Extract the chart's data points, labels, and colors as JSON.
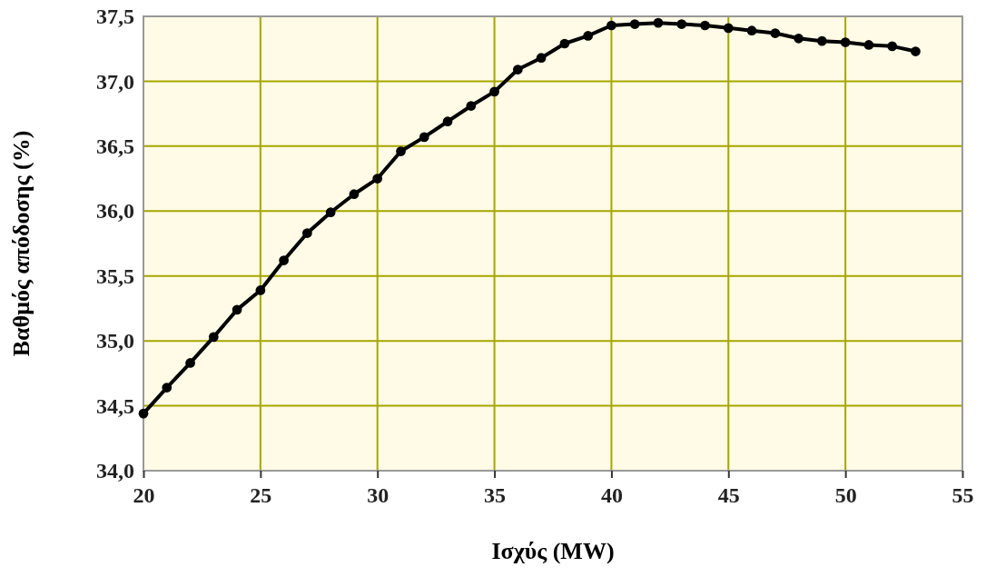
{
  "chart_data": {
    "type": "line",
    "xlabel": "Ισχύς (MW)",
    "ylabel": "Βαθμός απόδοσης (%)",
    "x": [
      20,
      21,
      22,
      23,
      24,
      25,
      26,
      27,
      28,
      29,
      30,
      31,
      32,
      33,
      34,
      35,
      36,
      37,
      38,
      39,
      40,
      41,
      42,
      43,
      44,
      45,
      46,
      47,
      48,
      49,
      50,
      51,
      52,
      53
    ],
    "series": [
      {
        "color": "#000000",
        "values": [
          34.44,
          34.64,
          34.83,
          35.03,
          35.24,
          35.39,
          35.62,
          35.83,
          35.99,
          36.13,
          36.25,
          36.46,
          36.57,
          36.69,
          36.81,
          36.92,
          37.09,
          37.18,
          37.29,
          37.35,
          37.43,
          37.44,
          37.45,
          37.44,
          37.43,
          37.41,
          37.39,
          37.37,
          37.33,
          37.31,
          37.3,
          37.28,
          37.27,
          37.23
        ]
      }
    ],
    "xlim": [
      20,
      55
    ],
    "xticks": [
      20,
      25,
      30,
      35,
      40,
      45,
      50,
      55
    ],
    "ylim": [
      34,
      37.5
    ],
    "yticks": [
      {
        "value": 34,
        "label": "34,0"
      },
      {
        "value": 34.5,
        "label": "34,5"
      },
      {
        "value": 35,
        "label": "35,0"
      },
      {
        "value": 35.5,
        "label": "35,5"
      },
      {
        "value": 36,
        "label": "36,0"
      },
      {
        "value": 36.5,
        "label": "36,5"
      },
      {
        "value": 37,
        "label": "37,0"
      },
      {
        "value": 37.5,
        "label": "37,5"
      }
    ],
    "grid": true,
    "marker": "circle",
    "line_style": "solid"
  }
}
